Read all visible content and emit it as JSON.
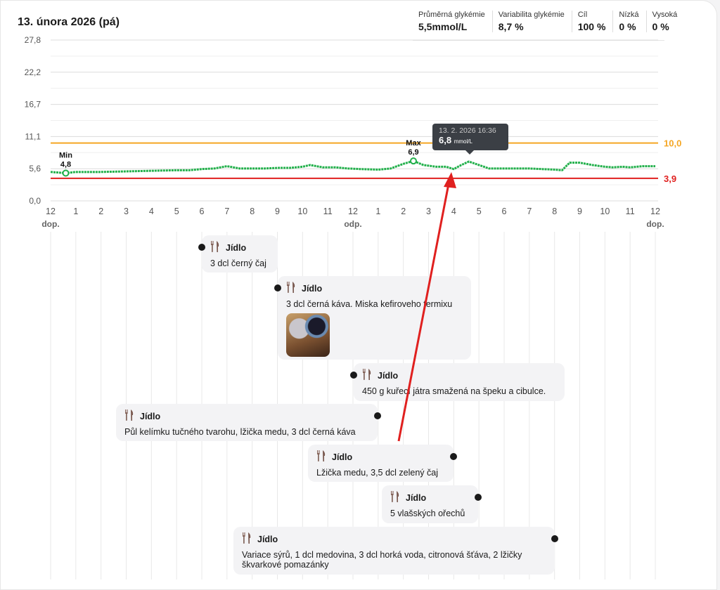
{
  "header": {
    "date": "13. února 2026 (pá)"
  },
  "stats": [
    {
      "label": "Průměrná glykémie",
      "value": "5,5mmol/L"
    },
    {
      "label": "Variabilita glykémie",
      "value": "8,7 %"
    },
    {
      "label": "Cíl",
      "value": "100 %"
    },
    {
      "label": "Nízká",
      "value": "0 %"
    },
    {
      "label": "Vysoká",
      "value": "0 %"
    }
  ],
  "chart_data": {
    "type": "line",
    "yticks": [
      "0,0",
      "5,6",
      "11,1",
      "16,7",
      "22,2",
      "27,8"
    ],
    "ylim": [
      0,
      27.8
    ],
    "xlim": [
      0,
      24
    ],
    "xticks": [
      "12",
      "1",
      "2",
      "3",
      "4",
      "5",
      "6",
      "7",
      "8",
      "9",
      "10",
      "11",
      "12",
      "1",
      "2",
      "3",
      "4",
      "5",
      "6",
      "7",
      "8",
      "9",
      "10",
      "11",
      "12"
    ],
    "xsublabels": {
      "start": "dop.",
      "mid": "odp.",
      "end": "dop."
    },
    "grid": true,
    "colors": {
      "line": "#22b04b",
      "high": "#f5a623",
      "low": "#e0201f"
    },
    "thresholds": {
      "high": {
        "value": 10.0,
        "label": "10,0"
      },
      "low": {
        "value": 3.9,
        "label": "3,9"
      }
    },
    "series": [
      {
        "x": [
          0,
          0.6,
          1,
          2,
          3,
          4,
          5,
          5.5,
          6,
          6.5,
          7,
          7.5,
          8,
          8.5,
          9,
          9.5,
          10,
          10.3,
          10.8,
          11.3,
          11.8,
          12.3,
          13,
          13.5,
          14,
          14.4,
          14.8,
          15.3,
          15.7,
          16,
          16.3,
          16.6,
          17,
          17.4,
          18,
          19,
          19.5,
          20,
          20.3,
          20.6,
          21,
          21.5,
          22,
          22.3,
          22.7,
          23,
          23.5,
          24
        ],
        "y": [
          5.0,
          4.8,
          5.0,
          5.0,
          5.1,
          5.2,
          5.3,
          5.3,
          5.5,
          5.6,
          6.0,
          5.6,
          5.6,
          5.6,
          5.7,
          5.7,
          5.9,
          6.2,
          5.8,
          5.8,
          5.6,
          5.5,
          5.4,
          5.6,
          6.4,
          6.9,
          6.2,
          5.9,
          5.9,
          5.5,
          6.2,
          6.8,
          6.2,
          5.6,
          5.6,
          5.6,
          5.5,
          5.4,
          5.3,
          6.6,
          6.6,
          6.2,
          5.9,
          5.8,
          5.9,
          5.8,
          6.0,
          6.0
        ]
      }
    ],
    "annotations": [
      {
        "label": "Min",
        "value": "4,8",
        "x": 0.6,
        "y": 4.8
      },
      {
        "label": "Max",
        "value": "6,9",
        "x": 14.4,
        "y": 6.9
      }
    ],
    "tooltip": {
      "time": "13. 2. 2026 16:36",
      "value": "6,8",
      "unit": "mmol/L"
    }
  },
  "meals": [
    {
      "title": "Jídlo",
      "text": "3 dcl černý čaj",
      "time": 6
    },
    {
      "title": "Jídlo",
      "text": "3 dcl černá káva. Miska kefiroveho termixu",
      "time": 9
    },
    {
      "title": "Jídlo",
      "text": "450 g kuřecí játra smažená na špeku a cibulce.",
      "time": 12
    },
    {
      "title": "Jídlo",
      "text": "Půl kelímku tučného tvarohu, lžička medu, 3 dcl černá káva",
      "time": 12.9
    },
    {
      "title": "Jídlo",
      "text": "Lžička medu, 3,5 dcl zelený čaj",
      "time": 15.9
    },
    {
      "title": "Jídlo",
      "text": "5 vlašských ořechů",
      "time": 16.9
    },
    {
      "title": "Jídlo",
      "text": "Variace sýrů, 1 dcl medovina, 3 dcl horká voda, citronová šťáva, 2 lžičky škvarkové pomazánky",
      "time": 20
    }
  ]
}
